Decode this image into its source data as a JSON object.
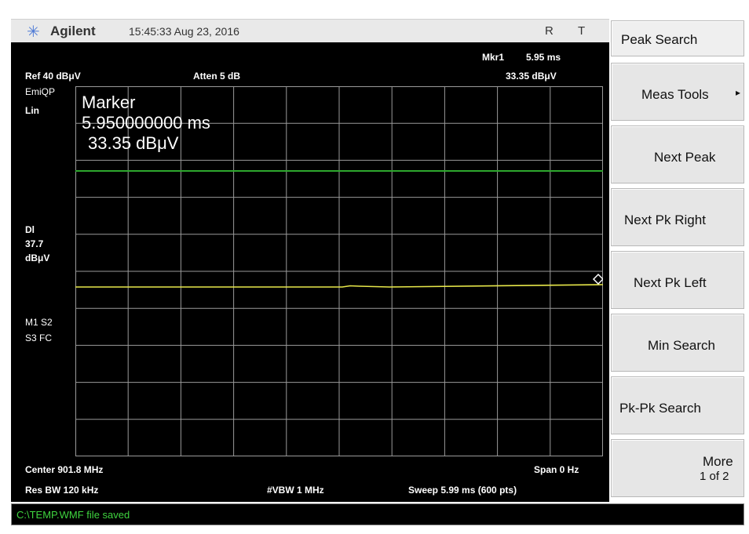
{
  "header": {
    "logo_icon": "agilent-spark-icon",
    "brand": "Agilent",
    "datetime": "15:45:33  Aug 23, 2016",
    "indicator_r": "R",
    "indicator_t": "T"
  },
  "screen": {
    "ref_level": "Ref 40 dBμV",
    "atten": "Atten 5 dB",
    "marker_readout_label": "Mkr1",
    "marker_readout_time": "5.95 ms",
    "marker_readout_level": "33.35 dBμV",
    "detector": "EmiQP",
    "scale": "Lin",
    "marker_box": {
      "title": "Marker",
      "time": "5.950000000 ms",
      "level": "33.35 dBμV"
    },
    "display_line_label": "Dl",
    "display_line_value": "37.7",
    "display_line_unit": "dBμV",
    "trace_flags_1": "M1   S2",
    "trace_flags_2": "S3   FC",
    "center_freq": "Center 901.8 MHz",
    "span": "Span 0 Hz",
    "res_bw": "Res BW 120 kHz",
    "vbw": "#VBW 1 MHz",
    "sweep": "Sweep 5.99 ms (600 pts)",
    "colors": {
      "display_line": "#2ea82e",
      "trace": "#e8e84a",
      "grid": "#9a9a9a"
    }
  },
  "softkeys": {
    "title": "Peak Search",
    "meas_tools": "Meas Tools",
    "meas_tools_arrow": "▸",
    "next_peak": "Next Peak",
    "next_pk_right": "Next Pk Right",
    "next_pk_left": "Next Pk Left",
    "min_search": "Min Search",
    "pk_pk_search": "Pk-Pk Search",
    "more": "More",
    "more_page": "1 of 2"
  },
  "status": {
    "message": "C:\\TEMP.WMF file saved"
  }
}
